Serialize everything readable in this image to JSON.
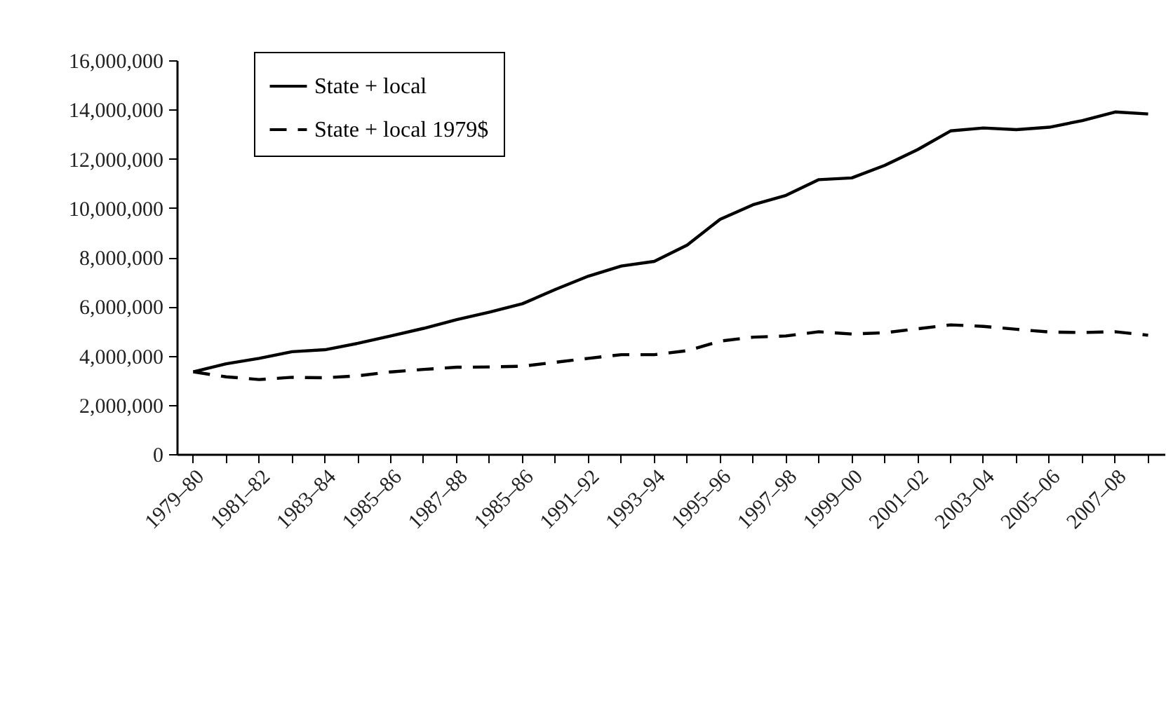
{
  "chart_data": {
    "type": "line",
    "categories": [
      "1979–80",
      null,
      "1981–82",
      null,
      "1983–84",
      null,
      "1985–86",
      null,
      "1987–88",
      null,
      "1985–86",
      null,
      "1991–92",
      null,
      "1993–94",
      null,
      "1995–96",
      null,
      "1997–98",
      null,
      "1999–00",
      null,
      "2001–02",
      null,
      "2003–04",
      null,
      "2005–06",
      null,
      "2007–08",
      null
    ],
    "series": [
      {
        "name": "State + local",
        "color": "#000000",
        "line_style": "solid",
        "values": [
          3340000,
          3670000,
          3890000,
          4160000,
          4240000,
          4500000,
          4800000,
          5110000,
          5460000,
          5770000,
          6110000,
          6690000,
          7230000,
          7640000,
          7830000,
          8490000,
          9540000,
          10130000,
          10510000,
          11150000,
          11220000,
          11730000,
          12370000,
          13130000,
          13250000,
          13180000,
          13280000,
          13550000,
          13900000,
          13820000
        ]
      },
      {
        "name": "State + local 1979$",
        "color": "#000000",
        "line_style": "dashed",
        "values": [
          3340000,
          3140000,
          3030000,
          3120000,
          3100000,
          3180000,
          3340000,
          3440000,
          3530000,
          3540000,
          3570000,
          3730000,
          3890000,
          4040000,
          4040000,
          4200000,
          4590000,
          4750000,
          4800000,
          4970000,
          4880000,
          4930000,
          5090000,
          5250000,
          5190000,
          5070000,
          4960000,
          4940000,
          4970000,
          4830000
        ]
      }
    ],
    "ylim": [
      0,
      16000000
    ],
    "yticks": [
      {
        "value": 0,
        "label": "0"
      },
      {
        "value": 2000000,
        "label": "2,000,000"
      },
      {
        "value": 4000000,
        "label": "4,000,000"
      },
      {
        "value": 6000000,
        "label": "6,000,000"
      },
      {
        "value": 8000000,
        "label": "8,000,000"
      },
      {
        "value": 10000000,
        "label": "10,000,000"
      },
      {
        "value": 12000000,
        "label": "12,000,000"
      },
      {
        "value": 14000000,
        "label": "14,000,000"
      },
      {
        "value": 16000000,
        "label": "16,000,000"
      }
    ],
    "legend": "top left"
  }
}
